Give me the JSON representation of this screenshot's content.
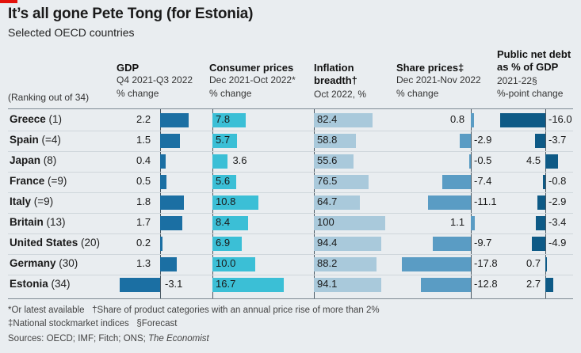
{
  "title": "It’s all gone Pete Tong (for Estonia)",
  "subtitle": "Selected OECD countries",
  "ranking_label": "(Ranking out of 34)",
  "columns": [
    {
      "title": "GDP",
      "sub1": "Q4 2021-Q3 2022",
      "sub2": "% change"
    },
    {
      "title": "Consumer prices",
      "sub1": "Dec 2021-Oct 2022*",
      "sub2": "% change"
    },
    {
      "title": "Inflation",
      "title2": "breadth†",
      "sub1": "Oct 2022, %"
    },
    {
      "title": "Share prices‡",
      "sub1": "Dec 2021-Nov 2022",
      "sub2": "% change"
    },
    {
      "title": "Public net debt",
      "title2": "as % of GDP",
      "sub1": "2021-22§",
      "sub2": "%-point change"
    }
  ],
  "colors": {
    "gdp": "#1b6fa3",
    "cpi": "#3bbfd6",
    "breadth": "#a9c9db",
    "shares": "#5a9cc4",
    "debt": "#0e5a86"
  },
  "chart_data": {
    "type": "table",
    "title": "It’s all gone Pete Tong (for Estonia)",
    "subtitle": "Selected OECD countries",
    "rows": [
      {
        "country": "Greece",
        "rank": "(1)",
        "gdp": 2.2,
        "cpi": 7.8,
        "breadth": 82.4,
        "shares": 0.8,
        "debt": -16.0
      },
      {
        "country": "Spain",
        "rank": "(=4)",
        "gdp": 1.5,
        "cpi": 5.7,
        "breadth": 58.8,
        "shares": -2.9,
        "debt": -3.7
      },
      {
        "country": "Japan",
        "rank": "(8)",
        "gdp": 0.4,
        "cpi": 3.6,
        "breadth": 55.6,
        "shares": -0.5,
        "debt": 4.5
      },
      {
        "country": "France",
        "rank": "(=9)",
        "gdp": 0.5,
        "cpi": 5.6,
        "breadth": 76.5,
        "shares": -7.4,
        "debt": -0.8
      },
      {
        "country": "Italy",
        "rank": "(=9)",
        "gdp": 1.8,
        "cpi": 10.8,
        "breadth": 64.7,
        "shares": -11.1,
        "debt": -2.9
      },
      {
        "country": "Britain",
        "rank": "(13)",
        "gdp": 1.7,
        "cpi": 8.4,
        "breadth": 100,
        "shares": 1.1,
        "debt": -3.4
      },
      {
        "country": "United States",
        "rank": "(20)",
        "gdp": 0.2,
        "cpi": 6.9,
        "breadth": 94.4,
        "shares": -9.7,
        "debt": -4.9
      },
      {
        "country": "Germany",
        "rank": "(30)",
        "gdp": 1.3,
        "cpi": 10.0,
        "breadth": 88.2,
        "shares": -17.8,
        "debt": 0.7
      },
      {
        "country": "Estonia",
        "rank": "(34)",
        "gdp": -3.1,
        "cpi": 16.7,
        "breadth": 94.1,
        "shares": -12.8,
        "debt": 2.7
      }
    ],
    "labels": {
      "gdp": [
        "2.2",
        "1.5",
        "0.4",
        "0.5",
        "1.8",
        "1.7",
        "0.2",
        "1.3",
        "-3.1"
      ],
      "cpi": [
        "7.8",
        "5.7",
        "3.6",
        "5.6",
        "10.8",
        "8.4",
        "6.9",
        "10.0",
        "16.7"
      ],
      "breadth": [
        "82.4",
        "58.8",
        "55.6",
        "76.5",
        "64.7",
        "100",
        "94.4",
        "88.2",
        "94.1"
      ],
      "shares": [
        "0.8",
        "-2.9",
        "-0.5",
        "-7.4",
        "-11.1",
        "1.1",
        "-9.7",
        "-17.8",
        "-12.8"
      ],
      "debt": [
        "-16.0",
        "-3.7",
        "4.5",
        "-0.8",
        "-2.9",
        "-3.4",
        "-4.9",
        "0.7",
        "2.7"
      ]
    }
  },
  "footnotes": {
    "line1a": "*Or latest available",
    "line1b": "†Share of product categories with an annual price rise of more than 2%",
    "line2a": "‡National stockmarket indices",
    "line2b": "§Forecast",
    "sources": "Sources: OECD; IMF; Fitch; ONS;",
    "sources_em": "The Economist"
  }
}
